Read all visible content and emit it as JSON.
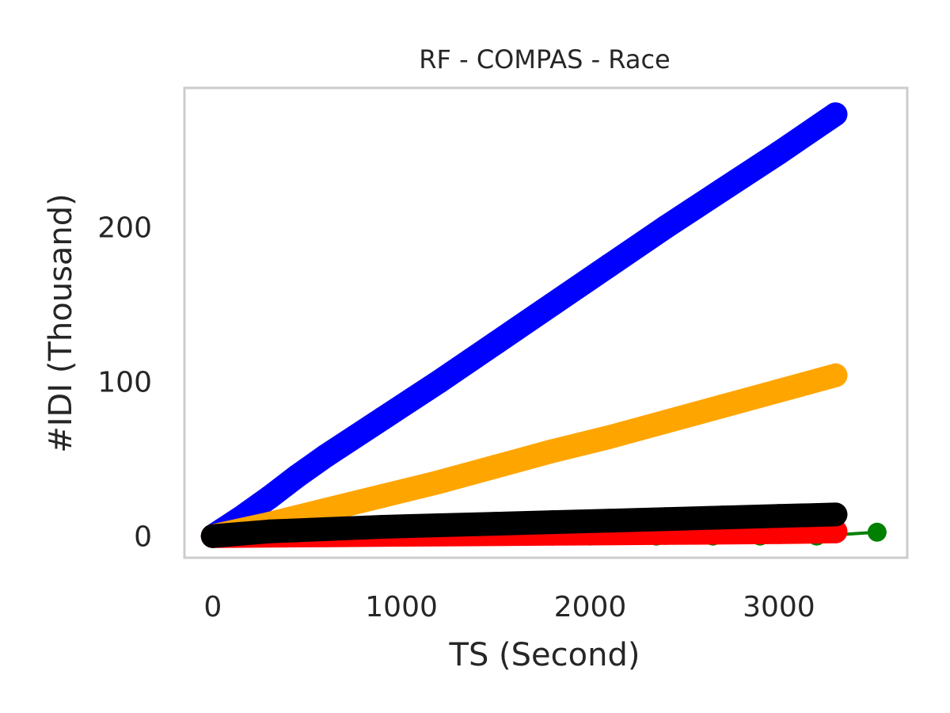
{
  "chart_data": {
    "type": "line",
    "title": "RF - COMPAS - Race",
    "xlabel": "TS (Second)",
    "ylabel": "#IDI (Thousand)",
    "xlim": [
      -150,
      3680
    ],
    "ylim": [
      -14,
      290
    ],
    "xticks": [
      0,
      1000,
      2000,
      3000
    ],
    "yticks": [
      0,
      100,
      200
    ],
    "grid": false,
    "series": [
      {
        "color": "#008000",
        "marker": "circle",
        "x": [
          0,
          300,
          600,
          900,
          1200,
          1450,
          1700,
          2000,
          2350,
          2650,
          2900,
          3200,
          3520
        ],
        "y": [
          0,
          0,
          0,
          0,
          0,
          0,
          0,
          0,
          0,
          0,
          0,
          0,
          2.5
        ]
      },
      {
        "color": "#0000ff",
        "marker": "circle",
        "x": [
          0,
          150,
          300,
          450,
          600,
          900,
          1200,
          1500,
          1800,
          2100,
          2400,
          2700,
          3000,
          3300
        ],
        "y": [
          0,
          12,
          25,
          39,
          52,
          76,
          100,
          125,
          150,
          175,
          200,
          224,
          248,
          273
        ]
      },
      {
        "color": "#ffa500",
        "marker": "circle",
        "x": [
          0,
          300,
          600,
          900,
          1200,
          1500,
          1800,
          2100,
          2400,
          2700,
          3000,
          3300
        ],
        "y": [
          0,
          8,
          17,
          26,
          35,
          45,
          55,
          64,
          74,
          84,
          94,
          104
        ]
      },
      {
        "color": "#ff0000",
        "marker": "circle",
        "x": [
          0,
          600,
          1200,
          1800,
          2400,
          3000,
          3300
        ],
        "y": [
          0,
          0.5,
          1,
          1.5,
          2,
          2.5,
          3
        ]
      },
      {
        "color": "#000000",
        "marker": "circle",
        "x": [
          0,
          300,
          600,
          900,
          1200,
          1500,
          1800,
          2100,
          2400,
          2700,
          3000,
          3300
        ],
        "y": [
          0,
          3,
          4.5,
          6,
          7,
          8,
          9,
          10,
          11,
          12,
          13,
          14
        ]
      }
    ]
  }
}
